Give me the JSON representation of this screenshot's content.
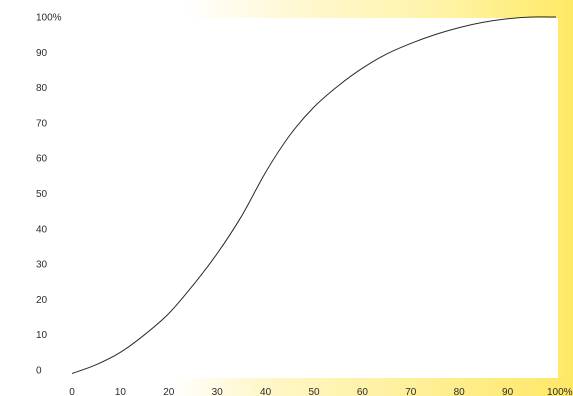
{
  "chart_data": {
    "type": "line",
    "title": "",
    "xlabel": "",
    "ylabel": "",
    "xlim": [
      0,
      100
    ],
    "ylim": [
      0,
      100
    ],
    "grid": false,
    "legend": "none",
    "x_tick_labels": [
      "0",
      "10",
      "20",
      "30",
      "40",
      "50",
      "60",
      "70",
      "80",
      "90",
      "100%"
    ],
    "y_tick_labels": [
      "0",
      "10",
      "20",
      "30",
      "40",
      "50",
      "60",
      "70",
      "80",
      "90",
      "100%"
    ],
    "series": [
      {
        "x": [
          0,
          5,
          10,
          15,
          20,
          25,
          30,
          35,
          40,
          45,
          50,
          55,
          60,
          65,
          70,
          75,
          80,
          85,
          90,
          95,
          100
        ],
        "y": [
          -1,
          1.5,
          5,
          10,
          16,
          24,
          33,
          43.5,
          56,
          66.5,
          74.5,
          80.5,
          85.5,
          89.5,
          92.5,
          95,
          97,
          98.5,
          99.5,
          100,
          100
        ]
      }
    ],
    "colors": {
      "line": "#2a2a2a",
      "plot_background": "#ffffff",
      "glow": "#fff27a"
    }
  }
}
